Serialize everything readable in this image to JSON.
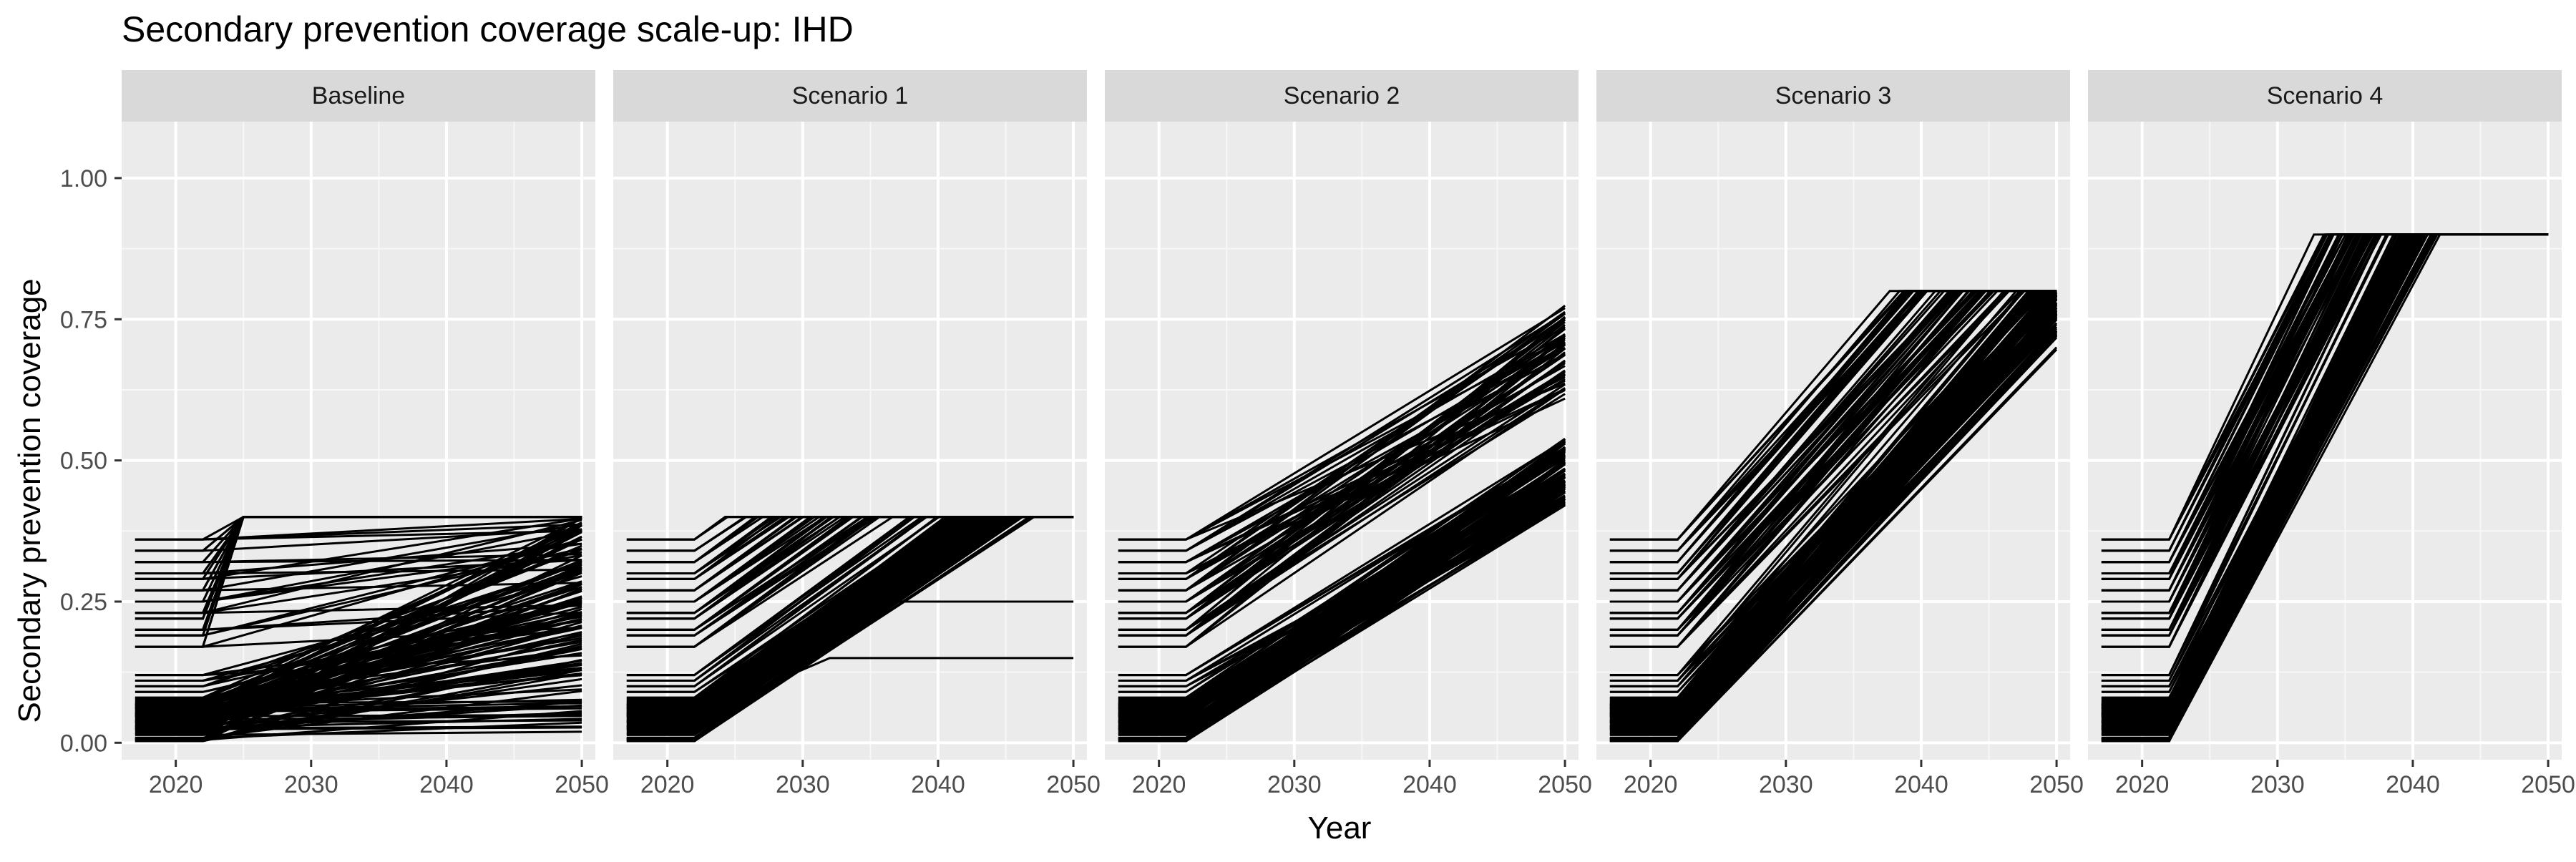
{
  "chart_data": {
    "type": "line",
    "title": "Secondary prevention coverage scale-up: IHD",
    "xlabel": "Year",
    "ylabel": "Secondary prevention coverage",
    "xlim": [
      2016,
      2051
    ],
    "ylim": [
      -0.03,
      1.1
    ],
    "x_ticks": [
      "2020",
      "2030",
      "2040",
      "2050"
    ],
    "y_ticks": [
      "0.00",
      "0.25",
      "0.50",
      "0.75",
      "1.00"
    ],
    "grid": true,
    "legend": "none",
    "line_color": "#000000",
    "panel_background": "#ebebeb",
    "strip_background": "#d9d9d9",
    "baseline_2022_levels": [
      0.0,
      0.01,
      0.02,
      0.03,
      0.04,
      0.05,
      0.06,
      0.07,
      0.08,
      0.09,
      0.1,
      0.11,
      0.12,
      0.17,
      0.19,
      0.2,
      0.22,
      0.23,
      0.25,
      0.27,
      0.29,
      0.3,
      0.32,
      0.34,
      0.36
    ],
    "panels": [
      {
        "label": "Baseline",
        "series_groups": [
          {
            "start_year": 2017,
            "scale_start": 2022,
            "rule": "no common target; each trajectory rises gradually to a value between 0.00 and 0.40 by 2050 (capped at 0.40)",
            "end_range_2050": [
              0.0,
              0.4
            ]
          }
        ]
      },
      {
        "label": "Scenario 1",
        "series_groups": [
          {
            "start_year": 2017,
            "scale_start": 2022,
            "rule": "linear increase from 2022 level until 0.40 is reached (reached between 2025 and 2048), flat afterwards",
            "target": 0.4
          },
          {
            "start_year": 2017,
            "scale_start": 2022,
            "rule": "isolated trajectories leveling off at lower values",
            "plateaus": [
              0.25,
              0.15
            ]
          }
        ]
      },
      {
        "label": "Scenario 2",
        "series_groups": [
          {
            "start_year": 2017,
            "scale_start": 2022,
            "rule": "linear increase through 2050, no plateau",
            "end_range_2050": [
              0.42,
              0.78
            ]
          }
        ]
      },
      {
        "label": "Scenario 3",
        "series_groups": [
          {
            "start_year": 2017,
            "scale_start": 2022,
            "rule": "linear increase to 0.80, reached around 2039-2050; low starters end near 0.70-0.80 in 2050",
            "target": 0.8
          }
        ]
      },
      {
        "label": "Scenario 4",
        "series_groups": [
          {
            "start_year": 2017,
            "scale_start": 2022,
            "rule": "steep linear increase to 0.90, reached between 2034 and 2042, flat to 2050",
            "target": 0.9
          }
        ]
      }
    ]
  }
}
